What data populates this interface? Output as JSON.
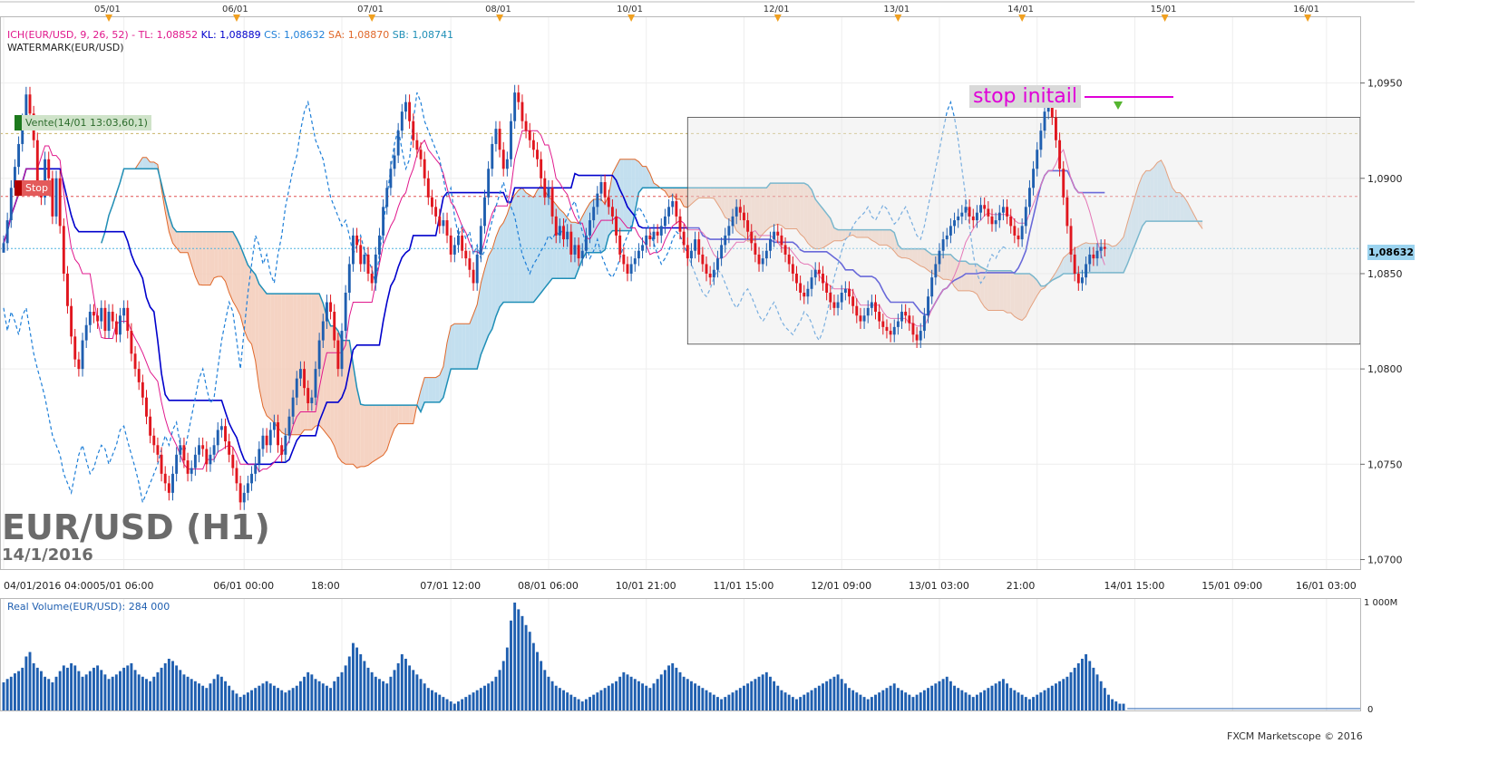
{
  "chart_data": {
    "type": "candlestick",
    "title": "EUR/USD (H1)",
    "subtitle": "14/1/2016",
    "indicator_legend": {
      "ich": "ICH(EUR/USD, 9, 26, 52) -",
      "tl": "TL: 1,08852",
      "kl": "KL: 1,08889",
      "cs": "CS: 1,08632",
      "sa": "SA: 1,08870",
      "sb": "SB: 1,08741"
    },
    "watermark_label": "WATERMARK(EUR/USD)",
    "volume_label": "Real Volume(EUR/USD): 284 000",
    "volume_axis": [
      "1 000M",
      "0"
    ],
    "copyright": "FXCM Marketscope © 2016",
    "annotation_stop_initial": "stop initail",
    "order_sell_label": "Vente(14/01 13:03,60,1)",
    "order_stop_label": "Stop",
    "current_price_label": "1,08632",
    "y_tick_labels": [
      "1,0950",
      "1,0900",
      "1,0850",
      "1,0800",
      "1,0750",
      "1,0700"
    ],
    "y_tick_values": [
      1.095,
      1.09,
      1.085,
      1.08,
      1.075,
      1.07
    ],
    "ylim": [
      1.0695,
      1.0985
    ],
    "top_date_labels": [
      "05/01",
      "06/01",
      "07/01",
      "08/01",
      "10/01",
      "12/01",
      "13/01",
      "14/01",
      "15/01",
      "16/01"
    ],
    "top_date_index": [
      28,
      62,
      98,
      132,
      167,
      206,
      238,
      271,
      309,
      347
    ],
    "bottom_time_labels": [
      "04/01/2016 04:00",
      "05/01 06:00",
      "06/01 00:00",
      "18:00",
      "07/01 12:00",
      "08/01 06:00",
      "10/01 21:00",
      "11/01 15:00",
      "12/01 09:00",
      "13/01 03:00",
      "21:00",
      "14/01 15:00",
      "15/01 09:00",
      "16/01 03:00"
    ],
    "bottom_time_index": [
      0,
      32,
      64,
      90,
      119,
      145,
      171,
      197,
      223,
      249,
      275,
      301,
      327,
      352
    ],
    "candles_close": [
      1.0866,
      1.0878,
      1.0895,
      1.0906,
      1.0918,
      1.093,
      1.0944,
      1.0934,
      1.092,
      1.0895,
      1.089,
      1.091,
      1.09,
      1.088,
      1.09,
      1.0875,
      1.085,
      1.0833,
      1.0817,
      1.0805,
      1.08,
      1.0815,
      1.0823,
      1.083,
      1.0828,
      1.0825,
      1.0832,
      1.082,
      1.083,
      1.0825,
      1.0818,
      1.0828,
      1.0832,
      1.082,
      1.0808,
      1.08,
      1.0793,
      1.0785,
      1.0775,
      1.0765,
      1.076,
      1.0755,
      1.0745,
      1.074,
      1.0735,
      1.0745,
      1.0755,
      1.076,
      1.0752,
      1.0745,
      1.0748,
      1.0755,
      1.076,
      1.0758,
      1.075,
      1.0755,
      1.076,
      1.0768,
      1.077,
      1.0762,
      1.0755,
      1.0748,
      1.074,
      1.073,
      1.0735,
      1.074,
      1.0745,
      1.075,
      1.0758,
      1.0765,
      1.076,
      1.0768,
      1.0772,
      1.076,
      1.0755,
      1.0765,
      1.0775,
      1.0785,
      1.0795,
      1.08,
      1.079,
      1.0782,
      1.0785,
      1.08,
      1.0815,
      1.0825,
      1.0835,
      1.083,
      1.0815,
      1.08,
      1.082,
      1.084,
      1.0855,
      1.087,
      1.0865,
      1.0855,
      1.086,
      1.085,
      1.0845,
      1.086,
      1.087,
      1.0885,
      1.0895,
      1.0905,
      1.0912,
      1.0925,
      1.0935,
      1.094,
      1.093,
      1.092,
      1.0915,
      1.091,
      1.09,
      1.089,
      1.0885,
      1.088,
      1.0875,
      1.0878,
      1.087,
      1.086,
      1.0865,
      1.087,
      1.0862,
      1.0858,
      1.0852,
      1.0845,
      1.086,
      1.0875,
      1.089,
      1.0905,
      1.0918,
      1.0926,
      1.0915,
      1.0905,
      1.091,
      1.093,
      1.0945,
      1.094,
      1.093,
      1.0925,
      1.092,
      1.0915,
      1.091,
      1.09,
      1.089,
      1.0895,
      1.088,
      1.087,
      1.0875,
      1.0868,
      1.0872,
      1.086,
      1.0865,
      1.0858,
      1.0862,
      1.087,
      1.0878,
      1.0885,
      1.0892,
      1.0898,
      1.089,
      1.0885,
      1.088,
      1.087,
      1.086,
      1.0855,
      1.085,
      1.0855,
      1.0858,
      1.0862,
      1.0865,
      1.087,
      1.0868,
      1.0872,
      1.087,
      1.0875,
      1.088,
      1.0885,
      1.0888,
      1.088,
      1.0872,
      1.0865,
      1.0858,
      1.0862,
      1.0868,
      1.086,
      1.0855,
      1.085,
      1.0848,
      1.0852,
      1.0858,
      1.0865,
      1.087,
      1.0875,
      1.088,
      1.0885,
      1.0882,
      1.0878,
      1.0872,
      1.0866,
      1.086,
      1.0855,
      1.0858,
      1.0862,
      1.0868,
      1.0872,
      1.087,
      1.0865,
      1.086,
      1.0855,
      1.085,
      1.0845,
      1.084,
      1.0838,
      1.0842,
      1.0848,
      1.0852,
      1.085,
      1.0845,
      1.084,
      1.0835,
      1.0832,
      1.0835,
      1.084,
      1.0842,
      1.0838,
      1.0833,
      1.0828,
      1.0825,
      1.0828,
      1.0832,
      1.0835,
      1.083,
      1.0825,
      1.0822,
      1.082,
      1.0818,
      1.0822,
      1.0825,
      1.083,
      1.0828,
      1.0824,
      1.0818,
      1.0815,
      1.082,
      1.0828,
      1.0838,
      1.0848,
      1.0855,
      1.0862,
      1.0868,
      1.087,
      1.0875,
      1.0878,
      1.088,
      1.0882,
      1.0885,
      1.088,
      1.0878,
      1.0882,
      1.0886,
      1.0884,
      1.088,
      1.0876,
      1.0878,
      1.0882,
      1.0885,
      1.088,
      1.0875,
      1.087,
      1.0868,
      1.0875,
      1.0885,
      1.0895,
      1.0905,
      1.0915,
      1.0925,
      1.0935,
      1.094,
      1.0932,
      1.092,
      1.0905,
      1.089,
      1.0875,
      1.086,
      1.085,
      1.0845,
      1.0848,
      1.0855,
      1.086,
      1.0858,
      1.0862,
      1.0864,
      1.0863
    ],
    "volume_values": [
      25,
      28,
      30,
      33,
      35,
      38,
      48,
      52,
      42,
      38,
      35,
      30,
      28,
      25,
      30,
      35,
      40,
      38,
      42,
      40,
      35,
      30,
      32,
      35,
      38,
      40,
      36,
      32,
      28,
      30,
      32,
      35,
      38,
      40,
      42,
      36,
      32,
      30,
      28,
      26,
      30,
      34,
      38,
      42,
      46,
      44,
      40,
      36,
      32,
      30,
      28,
      26,
      24,
      22,
      20,
      24,
      28,
      32,
      30,
      26,
      22,
      18,
      15,
      12,
      14,
      16,
      18,
      20,
      22,
      24,
      26,
      24,
      22,
      20,
      18,
      16,
      18,
      20,
      22,
      26,
      30,
      34,
      32,
      28,
      26,
      24,
      22,
      20,
      26,
      30,
      34,
      40,
      48,
      60,
      56,
      50,
      44,
      38,
      34,
      30,
      28,
      26,
      24,
      30,
      36,
      42,
      50,
      46,
      40,
      36,
      32,
      28,
      24,
      20,
      18,
      16,
      14,
      12,
      10,
      8,
      6,
      8,
      10,
      12,
      14,
      16,
      18,
      20,
      22,
      24,
      26,
      30,
      36,
      44,
      56,
      80,
      96,
      90,
      84,
      76,
      70,
      60,
      52,
      44,
      36,
      30,
      26,
      22,
      20,
      18,
      16,
      14,
      12,
      10,
      8,
      10,
      12,
      14,
      16,
      18,
      20,
      22,
      24,
      26,
      30,
      34,
      32,
      30,
      28,
      26,
      24,
      22,
      20,
      24,
      28,
      32,
      36,
      40,
      42,
      38,
      34,
      30,
      28,
      26,
      24,
      22,
      20,
      18,
      16,
      14,
      12,
      10,
      12,
      14,
      16,
      18,
      20,
      22,
      24,
      26,
      28,
      30,
      32,
      34,
      30,
      26,
      22,
      18,
      16,
      14,
      12,
      10,
      12,
      14,
      16,
      18,
      20,
      22,
      24,
      26,
      28,
      30,
      32,
      28,
      24,
      20,
      18,
      16,
      14,
      12,
      10,
      12,
      14,
      16,
      18,
      20,
      22,
      24,
      20,
      18,
      16,
      14,
      12,
      14,
      16,
      18,
      20,
      22,
      24,
      26,
      28,
      30,
      26,
      22,
      20,
      18,
      16,
      14,
      12,
      14,
      16,
      18,
      20,
      22,
      24,
      26,
      28,
      24,
      20,
      18,
      16,
      14,
      12,
      10,
      12,
      14,
      16,
      18,
      20,
      22,
      24,
      26,
      28,
      30,
      34,
      38,
      42,
      46,
      50,
      44,
      38,
      32,
      26,
      20,
      14,
      10,
      8,
      6,
      6
    ],
    "ylabel": "",
    "xlabel": "",
    "grid": true,
    "legend_position": "top-left"
  }
}
